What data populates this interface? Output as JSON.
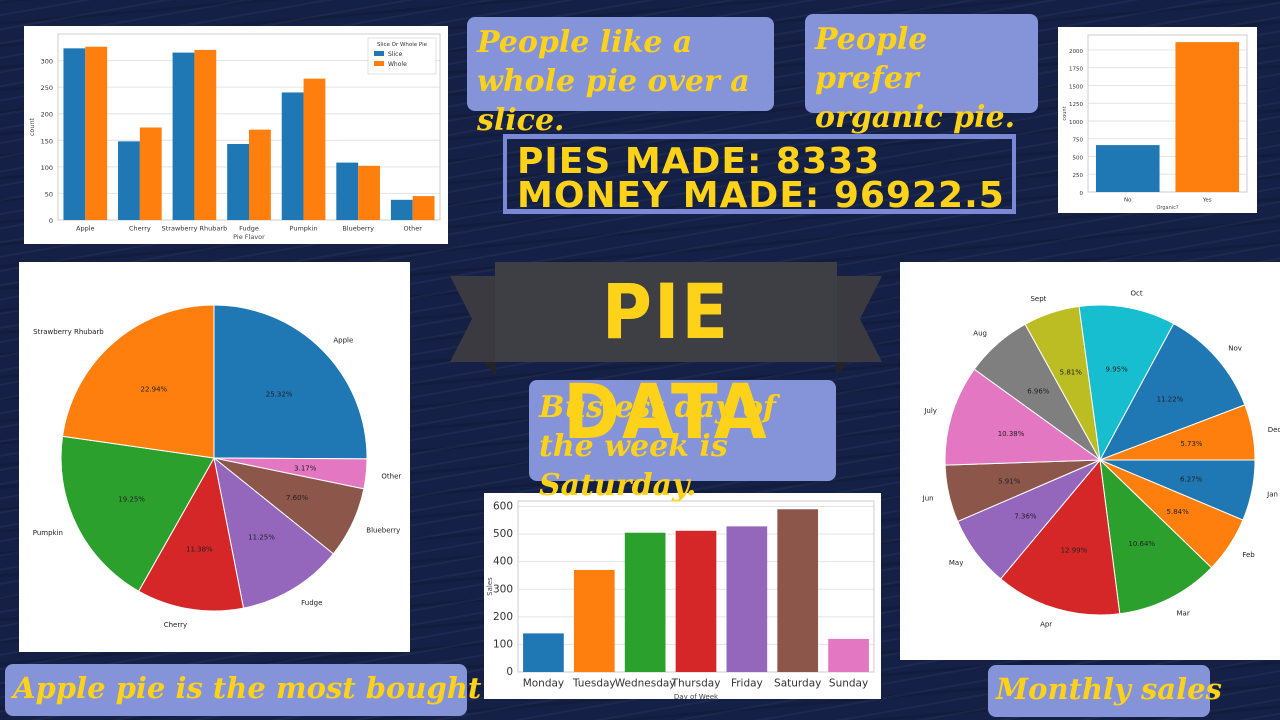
{
  "headline": {
    "title": "PIE DATA",
    "pies_made": "PIES MADE: 8333",
    "money_made": "MONEY MADE: 96922.5"
  },
  "notes": {
    "whole_vs_slice": "People like a whole pie over a slice.",
    "organic": "People prefer organic pie.",
    "busiest_day": "Busiest day of the week is Saturday.",
    "apple": "Apple pie is the most bought",
    "monthly": "Monthly sales"
  },
  "colors": {
    "blue": "#1f77b4",
    "orange": "#ff7f0e",
    "green": "#2ca02c",
    "red": "#d62728",
    "purple": "#9467bd",
    "brown": "#8c564b",
    "pink": "#e377c2",
    "gray": "#7f7f7f",
    "olive": "#bcbd22",
    "cyan": "#17becf",
    "note_bg": "#8593d8",
    "note_text": "#ffd21a"
  },
  "chart_data": [
    {
      "type": "bar",
      "categories": [
        "Apple",
        "Cherry",
        "Strawberry Rhubarb",
        "Fudge",
        "Pumpkin",
        "Blueberry",
        "Other"
      ],
      "series": [
        {
          "name": "Slice",
          "values": [
            323,
            148,
            315,
            143,
            240,
            108,
            38
          ]
        },
        {
          "name": "Whole",
          "values": [
            326,
            174,
            320,
            170,
            266,
            102,
            45
          ]
        }
      ],
      "xlabel": "Pie Flavor",
      "ylabel": "count",
      "ylim": [
        0,
        350
      ],
      "yticks": [
        0,
        50,
        100,
        150,
        200,
        250,
        300
      ],
      "legend_title": "Slice Or Whole Pie",
      "legend_position": "top-right"
    },
    {
      "type": "bar",
      "categories": [
        "No",
        "Yes"
      ],
      "values": [
        660,
        2110
      ],
      "xlabel": "Organic?",
      "ylabel": "count",
      "ylim": [
        0,
        2210
      ],
      "yticks": [
        0,
        250,
        500,
        750,
        1000,
        1250,
        1500,
        1750,
        2000
      ]
    },
    {
      "type": "pie",
      "labels": [
        "Apple",
        "Other",
        "Blueberry",
        "Fudge",
        "Cherry",
        "Pumpkin",
        "Strawberry Rhubarb"
      ],
      "values": [
        25.32,
        3.17,
        7.6,
        11.25,
        11.38,
        19.25,
        22.94
      ],
      "pct_labels": [
        "25.32%",
        "3.17%",
        "7.60%",
        "11.25%",
        "11.38%",
        "19.25%",
        "22.94%"
      ]
    },
    {
      "type": "bar",
      "categories": [
        "Monday",
        "Tuesday",
        "Wednesday",
        "Thursday",
        "Friday",
        "Saturday",
        "Sunday"
      ],
      "values": [
        140,
        370,
        505,
        512,
        528,
        590,
        120
      ],
      "xlabel": "Day of Week",
      "ylabel": "Sales",
      "ylim": [
        0,
        620
      ],
      "yticks": [
        0,
        100,
        200,
        300,
        400,
        500,
        600
      ]
    },
    {
      "type": "pie",
      "labels": [
        "Jan",
        "Feb",
        "Mar",
        "Apr",
        "May",
        "Jun",
        "July",
        "Aug",
        "Sept",
        "Oct",
        "Nov",
        "Dec"
      ],
      "values": [
        6.27,
        5.84,
        10.64,
        12.99,
        7.36,
        5.91,
        10.38,
        6.96,
        5.81,
        9.95,
        11.22,
        5.73
      ],
      "pct_labels": [
        "6.27%",
        "5.84%",
        "10.64%",
        "12.99%",
        "7.36%",
        "5.91%",
        "10.38%",
        "6.96%",
        "5.81%",
        "9.95%",
        "11.22%",
        "5.73%"
      ]
    }
  ]
}
